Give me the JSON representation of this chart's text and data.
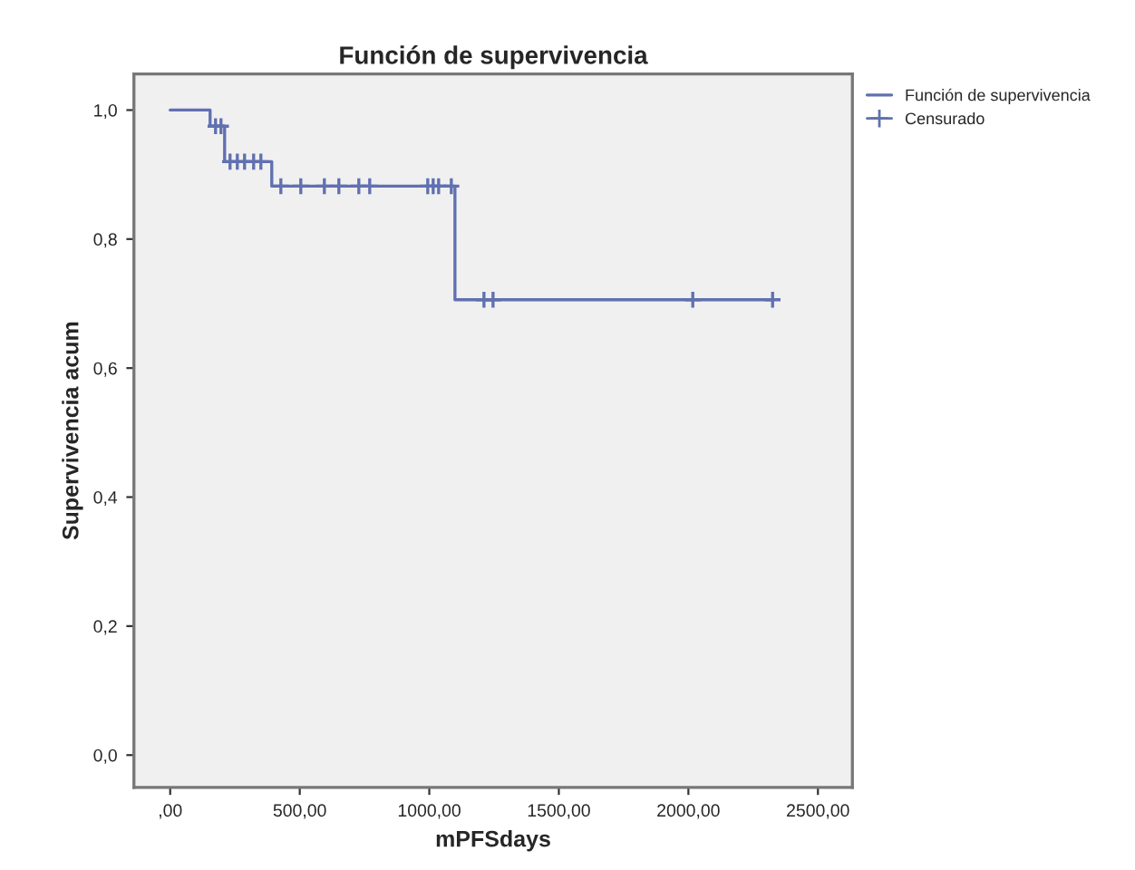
{
  "chart_data": {
    "type": "step",
    "title": "Función de supervivencia",
    "xlabel": "mPFSdays",
    "ylabel": "Supervivencia acum",
    "series": [
      {
        "name": "Función de supervivencia",
        "color": "#6070b0",
        "marker": "none",
        "x": [
          0,
          154,
          210,
          392,
          1099,
          2325
        ],
        "values": [
          1.0,
          0.975,
          0.92,
          0.882,
          0.706,
          0.706
        ]
      },
      {
        "name": "Censurado",
        "type": "scatter",
        "color": "#6070b0",
        "marker": "cross",
        "x": [
          175,
          196,
          231,
          259,
          287,
          322,
          350,
          427,
          504,
          595,
          651,
          728,
          770,
          994,
          1015,
          1036,
          1085,
          1211,
          1246,
          2017,
          2325
        ],
        "values": [
          0.975,
          0.975,
          0.92,
          0.92,
          0.92,
          0.92,
          0.92,
          0.882,
          0.882,
          0.882,
          0.882,
          0.882,
          0.882,
          0.882,
          0.882,
          0.882,
          0.882,
          0.706,
          0.706,
          0.706,
          0.706
        ]
      }
    ],
    "xlim": [
      -140,
      2633
    ],
    "ylim": [
      -0.05,
      1.056
    ],
    "xticks": [
      {
        "value": 0,
        "label": ",00"
      },
      {
        "value": 500,
        "label": "500,00"
      },
      {
        "value": 1000,
        "label": "1000,00"
      },
      {
        "value": 1500,
        "label": "1500,00"
      },
      {
        "value": 2000,
        "label": "2000,00"
      },
      {
        "value": 2500,
        "label": "2500,00"
      }
    ],
    "yticks": [
      {
        "value": 0,
        "label": "0,0"
      },
      {
        "value": 0.2,
        "label": "0,2"
      },
      {
        "value": 0.4,
        "label": "0,4"
      },
      {
        "value": 0.6,
        "label": "0,6"
      },
      {
        "value": 0.8,
        "label": "0,8"
      },
      {
        "value": 1.0,
        "label": "1,0"
      }
    ],
    "grid": false,
    "legend": "top right"
  }
}
